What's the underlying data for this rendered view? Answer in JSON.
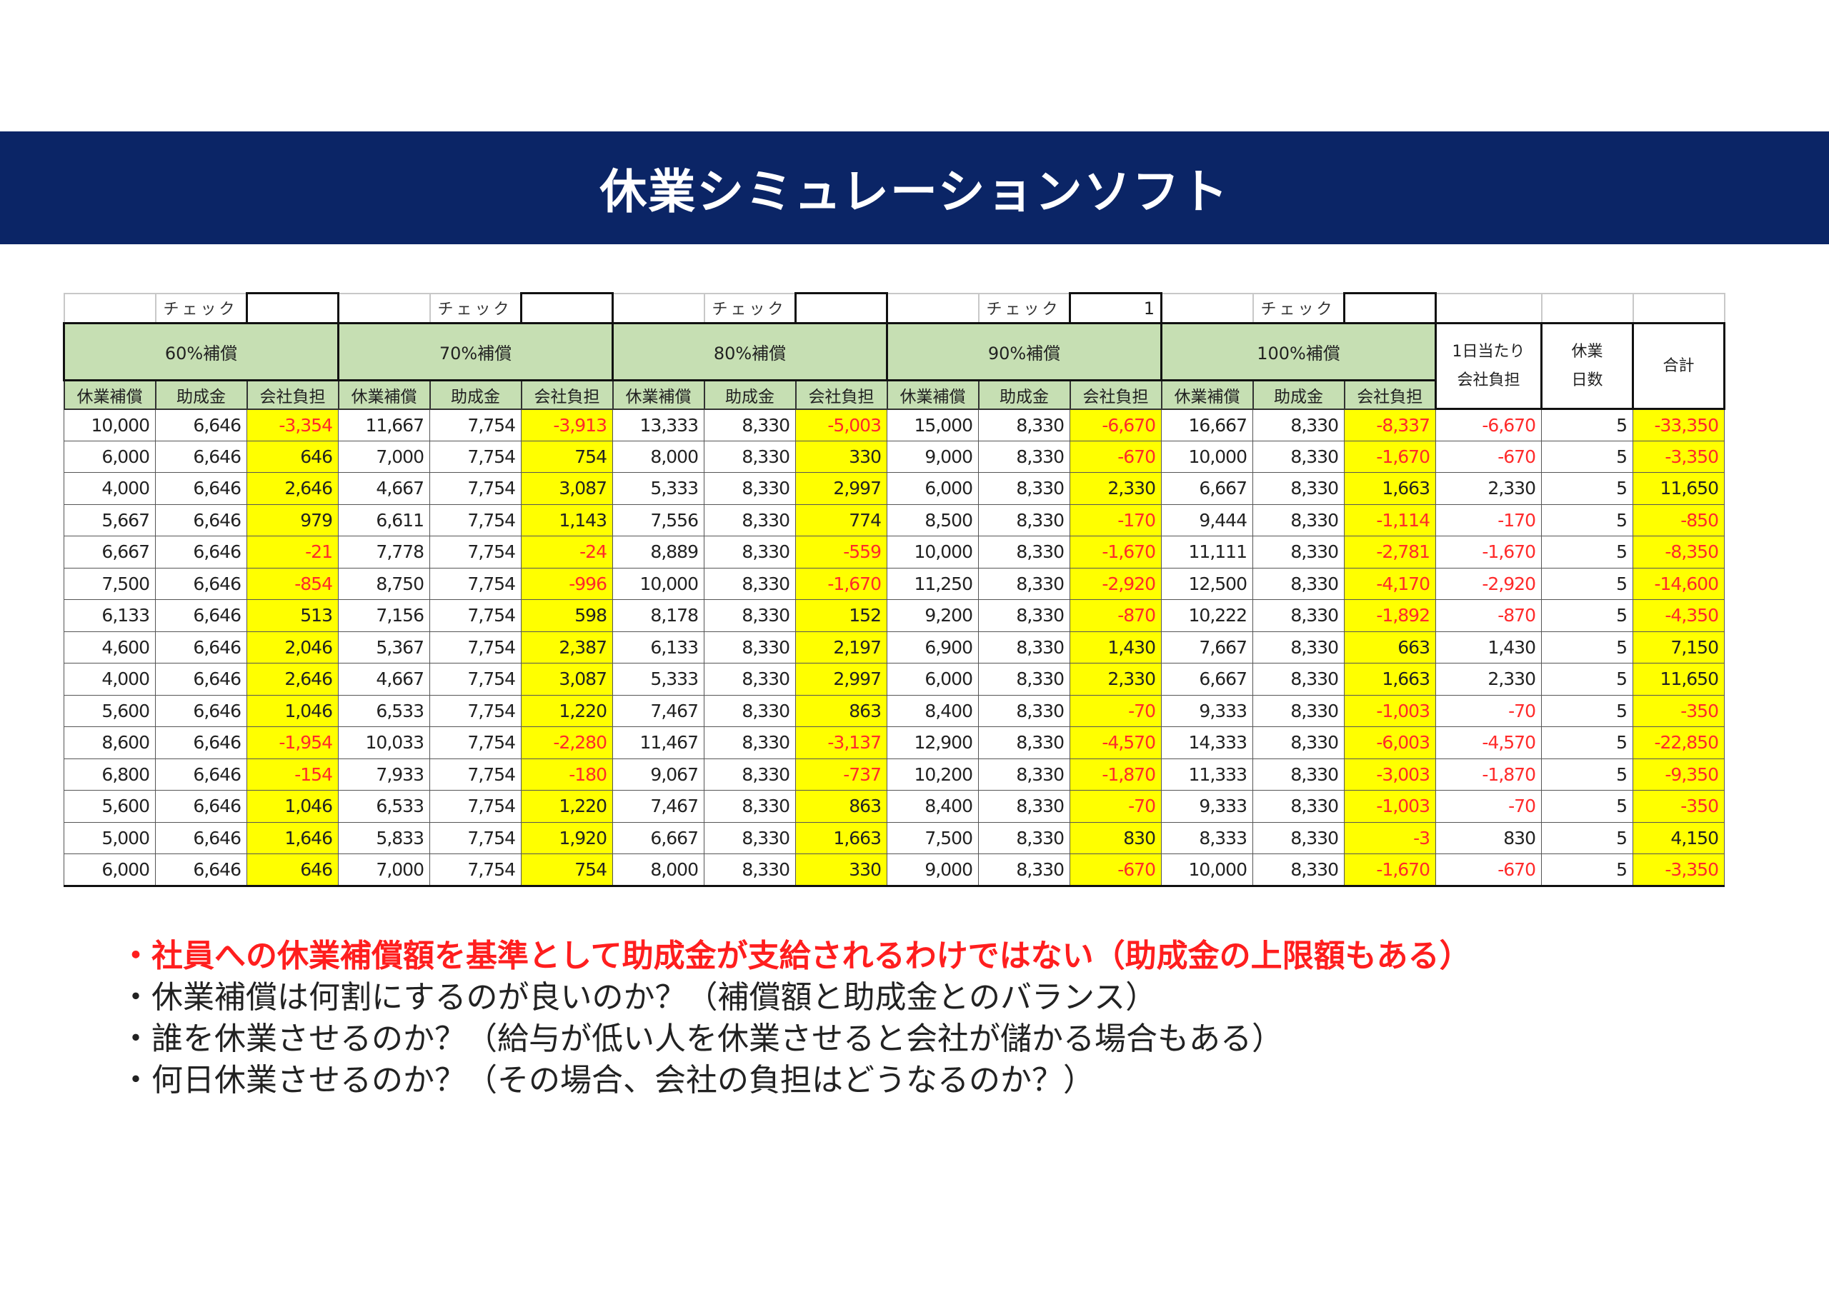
{
  "title": "休業シミュレーションソフト",
  "check_label": "チェック",
  "check_values": [
    "",
    "",
    "",
    "1",
    ""
  ],
  "groups": [
    "60%補償",
    "70%補償",
    "80%補償",
    "90%補償",
    "100%補償"
  ],
  "subheaders": [
    "休業補償",
    "助成金",
    "会社負担"
  ],
  "side_headers": {
    "per_day_line1": "1日当たり",
    "per_day_line2": "会社負担",
    "days_line1": "休業",
    "days_line2": "日数",
    "total": "合計"
  },
  "rows": [
    [
      "10,000",
      "6,646",
      "-3,354",
      "11,667",
      "7,754",
      "-3,913",
      "13,333",
      "8,330",
      "-5,003",
      "15,000",
      "8,330",
      "-6,670",
      "16,667",
      "8,330",
      "-8,337",
      "-6,670",
      "5",
      "-33,350"
    ],
    [
      "6,000",
      "6,646",
      "646",
      "7,000",
      "7,754",
      "754",
      "8,000",
      "8,330",
      "330",
      "9,000",
      "8,330",
      "-670",
      "10,000",
      "8,330",
      "-1,670",
      "-670",
      "5",
      "-3,350"
    ],
    [
      "4,000",
      "6,646",
      "2,646",
      "4,667",
      "7,754",
      "3,087",
      "5,333",
      "8,330",
      "2,997",
      "6,000",
      "8,330",
      "2,330",
      "6,667",
      "8,330",
      "1,663",
      "2,330",
      "5",
      "11,650"
    ],
    [
      "5,667",
      "6,646",
      "979",
      "6,611",
      "7,754",
      "1,143",
      "7,556",
      "8,330",
      "774",
      "8,500",
      "8,330",
      "-170",
      "9,444",
      "8,330",
      "-1,114",
      "-170",
      "5",
      "-850"
    ],
    [
      "6,667",
      "6,646",
      "-21",
      "7,778",
      "7,754",
      "-24",
      "8,889",
      "8,330",
      "-559",
      "10,000",
      "8,330",
      "-1,670",
      "11,111",
      "8,330",
      "-2,781",
      "-1,670",
      "5",
      "-8,350"
    ],
    [
      "7,500",
      "6,646",
      "-854",
      "8,750",
      "7,754",
      "-996",
      "10,000",
      "8,330",
      "-1,670",
      "11,250",
      "8,330",
      "-2,920",
      "12,500",
      "8,330",
      "-4,170",
      "-2,920",
      "5",
      "-14,600"
    ],
    [
      "6,133",
      "6,646",
      "513",
      "7,156",
      "7,754",
      "598",
      "8,178",
      "8,330",
      "152",
      "9,200",
      "8,330",
      "-870",
      "10,222",
      "8,330",
      "-1,892",
      "-870",
      "5",
      "-4,350"
    ],
    [
      "4,600",
      "6,646",
      "2,046",
      "5,367",
      "7,754",
      "2,387",
      "6,133",
      "8,330",
      "2,197",
      "6,900",
      "8,330",
      "1,430",
      "7,667",
      "8,330",
      "663",
      "1,430",
      "5",
      "7,150"
    ],
    [
      "4,000",
      "6,646",
      "2,646",
      "4,667",
      "7,754",
      "3,087",
      "5,333",
      "8,330",
      "2,997",
      "6,000",
      "8,330",
      "2,330",
      "6,667",
      "8,330",
      "1,663",
      "2,330",
      "5",
      "11,650"
    ],
    [
      "5,600",
      "6,646",
      "1,046",
      "6,533",
      "7,754",
      "1,220",
      "7,467",
      "8,330",
      "863",
      "8,400",
      "8,330",
      "-70",
      "9,333",
      "8,330",
      "-1,003",
      "-70",
      "5",
      "-350"
    ],
    [
      "8,600",
      "6,646",
      "-1,954",
      "10,033",
      "7,754",
      "-2,280",
      "11,467",
      "8,330",
      "-3,137",
      "12,900",
      "8,330",
      "-4,570",
      "14,333",
      "8,330",
      "-6,003",
      "-4,570",
      "5",
      "-22,850"
    ],
    [
      "6,800",
      "6,646",
      "-154",
      "7,933",
      "7,754",
      "-180",
      "9,067",
      "8,330",
      "-737",
      "10,200",
      "8,330",
      "-1,870",
      "11,333",
      "8,330",
      "-3,003",
      "-1,870",
      "5",
      "-9,350"
    ],
    [
      "5,600",
      "6,646",
      "1,046",
      "6,533",
      "7,754",
      "1,220",
      "7,467",
      "8,330",
      "863",
      "8,400",
      "8,330",
      "-70",
      "9,333",
      "8,330",
      "-1,003",
      "-70",
      "5",
      "-350"
    ],
    [
      "5,000",
      "6,646",
      "1,646",
      "5,833",
      "7,754",
      "1,920",
      "6,667",
      "8,330",
      "1,663",
      "7,500",
      "8,330",
      "830",
      "8,333",
      "8,330",
      "-3",
      "830",
      "5",
      "4,150"
    ],
    [
      "6,000",
      "6,646",
      "646",
      "7,000",
      "7,754",
      "754",
      "8,000",
      "8,330",
      "330",
      "9,000",
      "8,330",
      "-670",
      "10,000",
      "8,330",
      "-1,670",
      "-670",
      "5",
      "-3,350"
    ]
  ],
  "notes": [
    "・社員への休業補償額を基準として助成金が支給されるわけではない（助成金の上限額もある）",
    "・休業補償は何割にするのが良いのか？（補償額と助成金とのバランス）",
    "・誰を休業させるのか？（給与が低い人を休業させると会社が儲かる場合もある）",
    "・何日休業させるのか？（その場合、会社の負担はどうなるのか？）"
  ],
  "colors": {
    "banner": "#0b2566",
    "header_fill": "#c6dfb3",
    "highlight": "#ffff00",
    "negative": "#ff2a2a",
    "note_red": "#ff1e1e"
  }
}
